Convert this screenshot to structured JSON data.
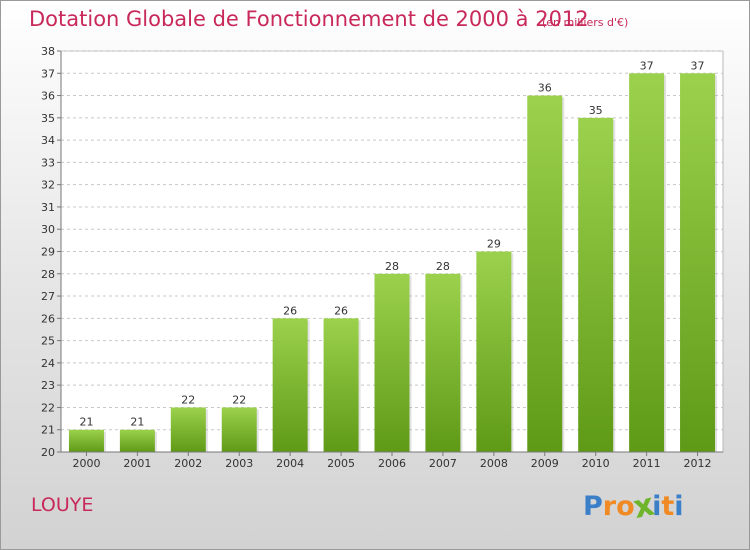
{
  "header": {
    "title": "Dotation Globale de Fonctionnement de 2000 à 2012",
    "subtitle": "(en milliers d'€)"
  },
  "footer": {
    "commune": "LOUYE",
    "logo_text": "Proxiti",
    "logo_letters": [
      "P",
      "r",
      "o",
      "x",
      "i",
      "t",
      "i"
    ],
    "logo_colors": [
      "#3a7fc8",
      "#f08a24",
      "#f08a24",
      "#6fb52c",
      "#3a7fc8",
      "#f08a24",
      "#3a7fc8"
    ]
  },
  "colors": {
    "accent": "#c8285a",
    "bar_top": "#9bd14d",
    "bar_bottom": "#5f9a16",
    "grid": "#c8c8c8"
  },
  "chart_data": {
    "type": "bar",
    "title": "Dotation Globale de Fonctionnement de 2000 à 2012",
    "subtitle": "(en milliers d'€)",
    "xlabel": "",
    "ylabel": "",
    "categories": [
      "2000",
      "2001",
      "2002",
      "2003",
      "2004",
      "2005",
      "2006",
      "2007",
      "2008",
      "2009",
      "2010",
      "2011",
      "2012"
    ],
    "values": [
      21,
      21,
      22,
      22,
      26,
      26,
      28,
      28,
      29,
      36,
      35,
      37,
      37
    ],
    "ylim": [
      20,
      38
    ],
    "yticks": [
      20,
      21,
      22,
      23,
      24,
      25,
      26,
      27,
      28,
      29,
      30,
      31,
      32,
      33,
      34,
      35,
      36,
      37,
      38
    ],
    "grid": true,
    "legend": "none"
  }
}
